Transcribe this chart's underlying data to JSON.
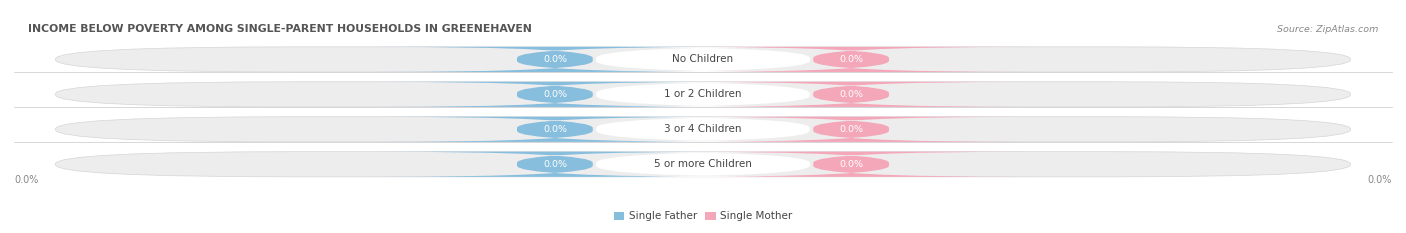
{
  "title": "INCOME BELOW POVERTY AMONG SINGLE-PARENT HOUSEHOLDS IN GREENEHAVEN",
  "source_text": "Source: ZipAtlas.com",
  "categories": [
    "No Children",
    "1 or 2 Children",
    "3 or 4 Children",
    "5 or more Children"
  ],
  "father_values": [
    0.0,
    0.0,
    0.0,
    0.0
  ],
  "mother_values": [
    0.0,
    0.0,
    0.0,
    0.0
  ],
  "father_color": "#87BEDD",
  "mother_color": "#F4A7B9",
  "bar_bg_color": "#EDEDEE",
  "bar_bg_edge_color": "#D5D5D8",
  "category_text_color": "#444444",
  "title_color": "#555555",
  "source_color": "#888888",
  "axis_label_color": "#888888",
  "background_color": "#FFFFFF",
  "figsize": [
    14.06,
    2.33
  ],
  "dpi": 100,
  "x_axis_label_left": "0.0%",
  "x_axis_label_right": "0.0%",
  "legend_father": "Single Father",
  "legend_mother": "Single Mother"
}
